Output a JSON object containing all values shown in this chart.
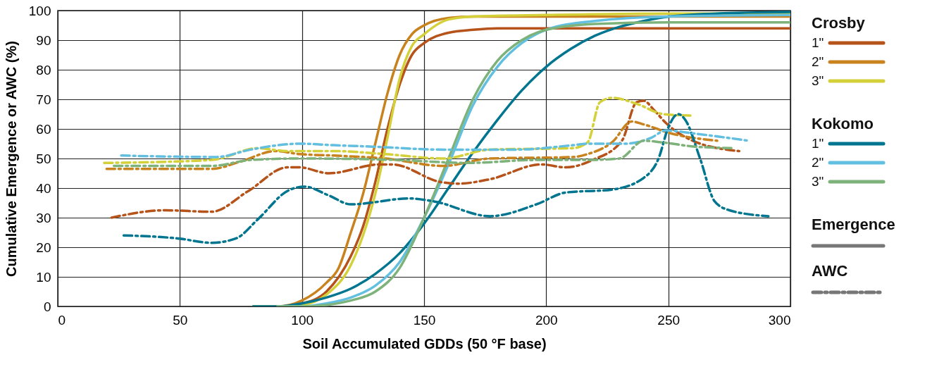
{
  "chart_data": {
    "type": "line",
    "xlabel": "Soil Accumulated GDDs (50 °F base)",
    "ylabel": "Cumulative Emergence or AWC (%)",
    "xlim": [
      0,
      300
    ],
    "xticks": [
      0,
      50,
      100,
      150,
      200,
      250,
      300
    ],
    "ylim": [
      0,
      100
    ],
    "yticks": [
      0,
      10,
      20,
      30,
      40,
      50,
      60,
      70,
      80,
      90,
      100
    ],
    "grid": true,
    "legend": "right",
    "marker": "none",
    "annotations": [
      "Crosby",
      "Kokomo",
      "Emergence",
      "AWC"
    ],
    "series": [
      {
        "name": "1\"",
        "color": "#b5531a",
        "line_style": "solid",
        "x": [
          80,
          90,
          100,
          110,
          120,
          125,
          130,
          135,
          140,
          145,
          150,
          160,
          170,
          180,
          200,
          250,
          300
        ],
        "values": [
          0,
          0,
          1,
          5,
          17,
          27,
          42,
          60,
          75,
          85,
          89,
          92.5,
          93.5,
          94,
          94,
          94,
          94
        ]
      },
      {
        "name": "2\"",
        "color": "#c8821e",
        "line_style": "solid",
        "x": [
          80,
          90,
          100,
          110,
          115,
          120,
          125,
          130,
          135,
          140,
          145,
          150,
          160,
          170,
          200,
          250,
          300
        ],
        "values": [
          0,
          0,
          2,
          8,
          13,
          25,
          38,
          55,
          72,
          85,
          92,
          95,
          97.5,
          98,
          98,
          98,
          98
        ]
      },
      {
        "name": "3\"",
        "color": "#d4d03a",
        "line_style": "solid",
        "x": [
          80,
          90,
          100,
          110,
          120,
          125,
          130,
          135,
          140,
          145,
          150,
          160,
          170,
          200,
          250,
          300
        ],
        "values": [
          0,
          0,
          0.5,
          4,
          14,
          24,
          38,
          57,
          77,
          88,
          92,
          97,
          98,
          98.5,
          99,
          99
        ]
      },
      {
        "name": "1\"",
        "color": "#00758f",
        "line_style": "solid",
        "x": [
          80,
          90,
          100,
          110,
          120,
          130,
          140,
          150,
          160,
          170,
          180,
          190,
          200,
          210,
          220,
          230,
          240,
          250,
          270,
          300
        ],
        "values": [
          0,
          0,
          1,
          3,
          6,
          11,
          18,
          28,
          40,
          52,
          63,
          73,
          81,
          87,
          91.5,
          94.5,
          96.5,
          98,
          99,
          99.5
        ]
      },
      {
        "name": "2\"",
        "color": "#62bfe0",
        "line_style": "solid",
        "x": [
          90,
          100,
          110,
          120,
          130,
          140,
          150,
          160,
          170,
          180,
          190,
          200,
          220,
          250,
          300
        ],
        "values": [
          0,
          0,
          1,
          3,
          7,
          15,
          30,
          48,
          68,
          81,
          89,
          93.5,
          96.5,
          98,
          98.5
        ]
      },
      {
        "name": "3\"",
        "color": "#7db37a",
        "line_style": "solid",
        "x": [
          90,
          100,
          110,
          120,
          130,
          140,
          150,
          160,
          170,
          180,
          190,
          200,
          220,
          250,
          300
        ],
        "values": [
          0,
          0,
          0.5,
          2,
          5,
          13,
          30,
          50,
          70,
          83,
          90,
          93.5,
          95.5,
          96,
          96
        ]
      },
      {
        "color": "#b5531a",
        "line_style": "dashed",
        "x": [
          22,
          44,
          63,
          78,
          94,
          99,
          111,
          132,
          137,
          157,
          164,
          177,
          198,
          208,
          219,
          231,
          237,
          240,
          244,
          249,
          260,
          279
        ],
        "values": [
          30,
          32.5,
          32,
          39,
          47,
          47,
          45,
          48,
          48,
          42,
          41.5,
          43,
          48,
          47,
          49.5,
          56,
          69,
          69.5,
          66.5,
          62,
          56,
          52.5
        ]
      },
      {
        "color": "#c8821e",
        "line_style": "dashed",
        "x": [
          20,
          63,
          75,
          89,
          99,
          113,
          134,
          158,
          177,
          211,
          217,
          227,
          235,
          240,
          251,
          270
        ],
        "values": [
          46.5,
          46.5,
          49,
          52.5,
          51.5,
          51,
          50,
          47.5,
          50,
          50.5,
          51.5,
          55.5,
          62.5,
          61.5,
          58.5,
          56
        ]
      },
      {
        "color": "#d4d03a",
        "line_style": "dashed",
        "x": [
          19,
          63,
          82,
          94,
          113,
          134,
          158,
          177,
          211,
          217,
          222,
          227,
          237,
          248,
          259
        ],
        "values": [
          48.5,
          49.5,
          53.5,
          52.5,
          52.5,
          51.5,
          50,
          53,
          53.5,
          55.5,
          69,
          70.5,
          68.5,
          65,
          64.5
        ]
      },
      {
        "color": "#00758f",
        "line_style": "dashed",
        "x": [
          27,
          49,
          63,
          73,
          82,
          94,
          101,
          111,
          120,
          144,
          154,
          177,
          196,
          208,
          227,
          240,
          246,
          250,
          254,
          257,
          263,
          269,
          275,
          291
        ],
        "values": [
          24,
          23,
          21.5,
          23,
          29.5,
          39,
          40.5,
          37.5,
          34.5,
          36.5,
          35.5,
          30.5,
          34.5,
          38.5,
          39.5,
          43.5,
          50,
          60.5,
          65,
          63,
          50,
          35.5,
          32.5,
          30.5
        ]
      },
      {
        "color": "#62bfe0",
        "line_style": "dashed",
        "x": [
          26,
          65,
          79,
          99,
          113,
          129,
          158,
          187,
          211,
          217,
          232,
          243,
          249,
          260,
          283
        ],
        "values": [
          51,
          50.5,
          53,
          55,
          54.5,
          54,
          53,
          53,
          54.5,
          55,
          55,
          57,
          59.5,
          58.5,
          56
        ]
      },
      {
        "color": "#7db37a",
        "line_style": "dashed",
        "x": [
          23,
          63,
          79,
          99,
          139,
          168,
          196,
          217,
          230,
          240,
          247,
          261,
          277
        ],
        "values": [
          47.5,
          47.5,
          49.5,
          50,
          49.5,
          48.5,
          49.5,
          49.5,
          50,
          56,
          55.5,
          54,
          53.5
        ]
      }
    ]
  }
}
